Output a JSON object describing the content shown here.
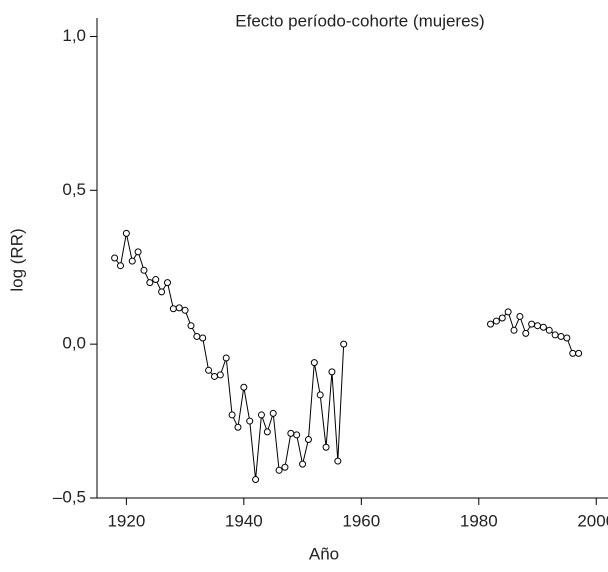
{
  "chart_data": {
    "type": "line",
    "title": "Efecto período-cohorte (mujeres)",
    "x_label": "Año",
    "y_label": "log (RR)",
    "x": [
      1918,
      1919,
      1920,
      1921,
      1922,
      1923,
      1924,
      1925,
      1926,
      1927,
      1928,
      1929,
      1930,
      1931,
      1932,
      1933,
      1934,
      1935,
      1936,
      1937,
      1938,
      1939,
      1940,
      1941,
      1942,
      1943,
      1944,
      1945,
      1946,
      1947,
      1948,
      1949,
      1950,
      1951,
      1952,
      1953,
      1954,
      1955,
      1956,
      1957,
      1958,
      1982,
      1983,
      1984,
      1985,
      1986,
      1987,
      1988,
      1989,
      1990,
      1991,
      1992,
      1993,
      1994,
      1995,
      1996,
      1997
    ],
    "series": [
      {
        "name": "log (RR)",
        "color": "#000000",
        "values": [
          0.28,
          0.255,
          0.36,
          0.27,
          0.3,
          0.24,
          0.2,
          0.21,
          0.17,
          0.2,
          0.115,
          0.118,
          0.11,
          0.06,
          0.025,
          0.02,
          -0.085,
          -0.105,
          -0.1,
          -0.045,
          -0.23,
          -0.27,
          -0.14,
          -0.25,
          -0.44,
          -0.23,
          -0.285,
          -0.225,
          -0.41,
          -0.4,
          -0.29,
          -0.295,
          -0.39,
          -0.31,
          -0.06,
          -0.165,
          -0.335,
          -0.09,
          -0.38,
          0.0,
          null,
          0.065,
          0.075,
          0.085,
          0.105,
          0.045,
          0.09,
          0.035,
          0.065,
          0.06,
          0.055,
          0.045,
          0.03,
          0.025,
          0.02,
          -0.03,
          -0.03
        ]
      }
    ],
    "xlim": [
      1915,
      2002
    ],
    "xticks": [
      1920,
      1940,
      1960,
      1980,
      2000
    ],
    "ylim": [
      -0.5,
      1.06
    ],
    "yticks": [
      {
        "value": -0.5,
        "label": "–0,5"
      },
      {
        "value": 0,
        "label": "0,0"
      },
      {
        "value": 0.5,
        "label": "0,5"
      },
      {
        "value": 1,
        "label": "1,0"
      }
    ]
  }
}
